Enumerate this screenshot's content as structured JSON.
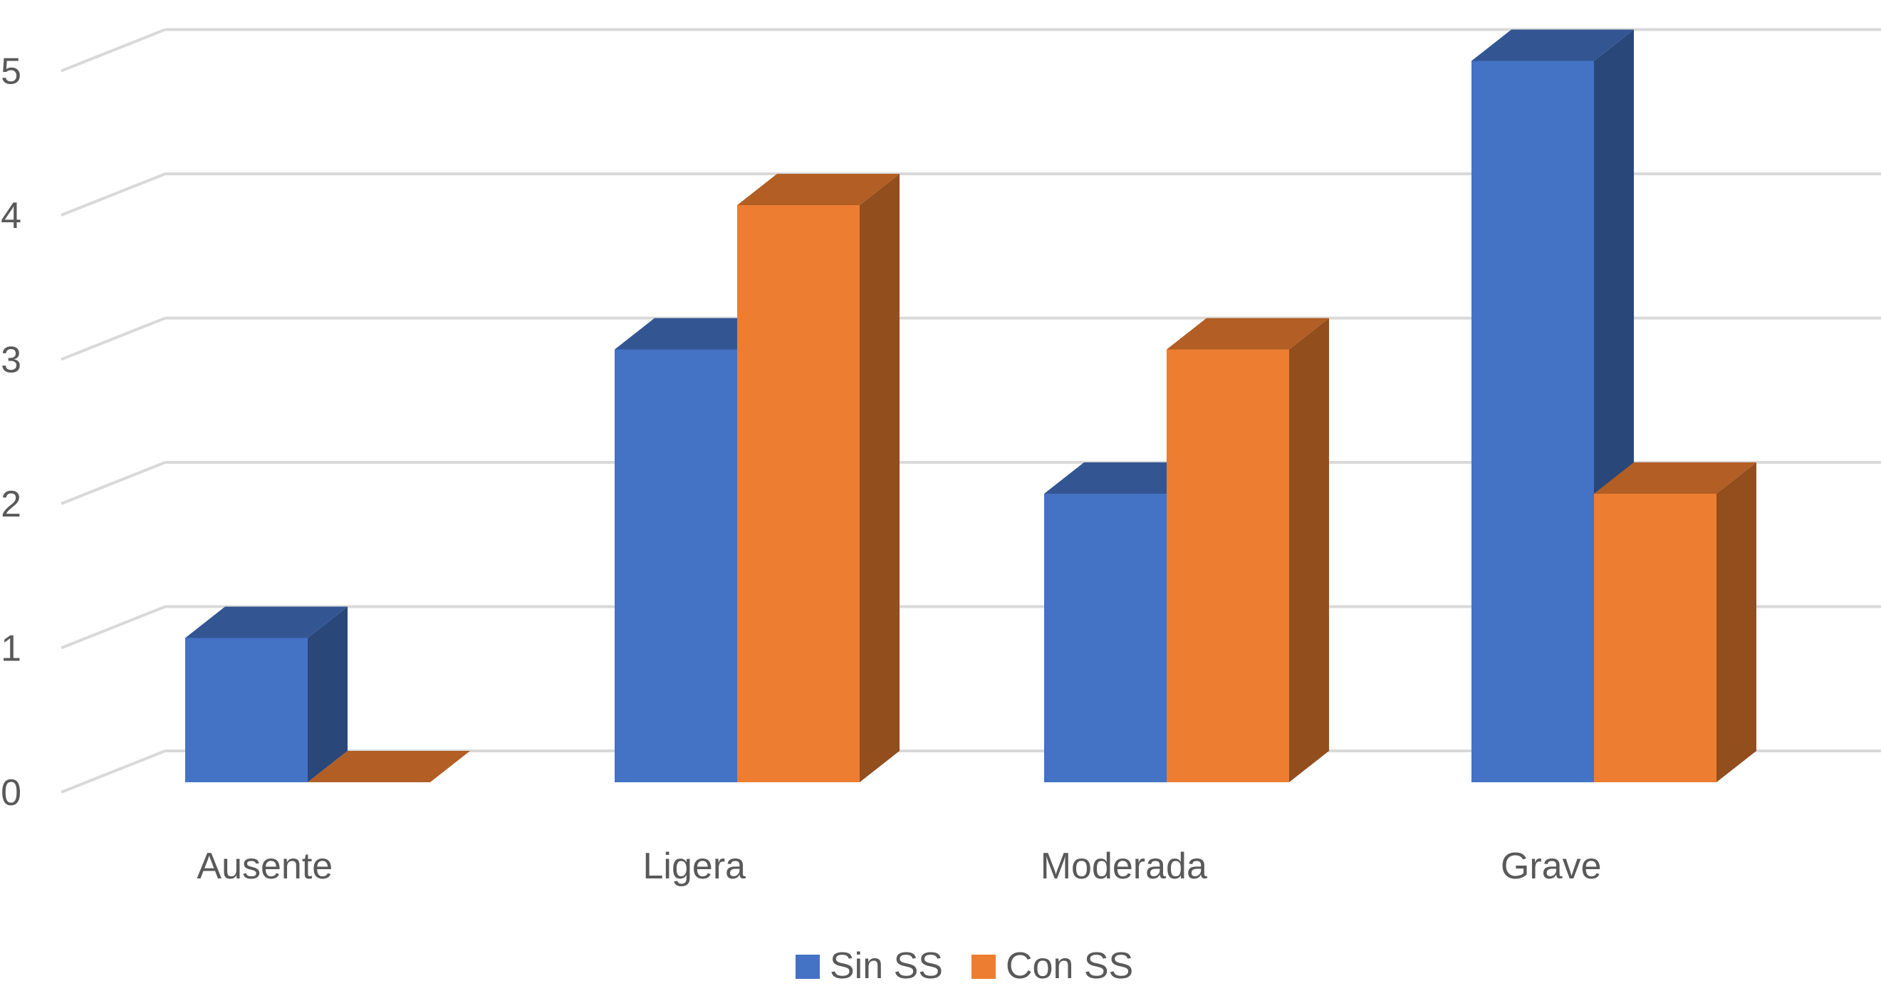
{
  "chart_data": {
    "type": "bar",
    "categories": [
      "Ausente",
      "Ligera",
      "Moderada",
      "Grave"
    ],
    "series": [
      {
        "name": "Sin SS",
        "values": [
          1,
          3,
          2,
          5
        ],
        "color": "#4472C4"
      },
      {
        "name": "Con SS",
        "values": [
          0,
          4,
          3,
          2
        ],
        "color": "#ED7D31"
      }
    ],
    "ylim": [
      0,
      5
    ],
    "yticks": [
      "0",
      "1",
      "2",
      "3",
      "4",
      "5"
    ],
    "grid": true,
    "legend": "bottom",
    "title": "",
    "xlabel": "",
    "ylabel": ""
  }
}
